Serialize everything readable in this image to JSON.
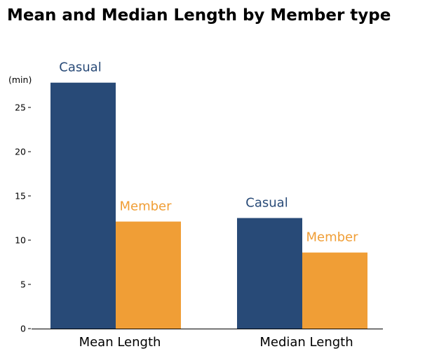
{
  "chart_data": {
    "type": "bar",
    "title": "Mean and Median Length by Member type",
    "ylabel": "(min)",
    "xlabel": "",
    "categories": [
      "Mean Length",
      "Median Length"
    ],
    "series": [
      {
        "name": "Casual",
        "values": [
          27.8,
          12.5
        ],
        "color": "#284a77"
      },
      {
        "name": "Member",
        "values": [
          12.1,
          8.6
        ],
        "color": "#f09e36"
      }
    ],
    "ylim": [
      0,
      30
    ],
    "yticks": [
      0,
      5,
      10,
      15,
      20,
      25
    ],
    "grid": false,
    "legend": "none (series labels placed above bars)"
  }
}
